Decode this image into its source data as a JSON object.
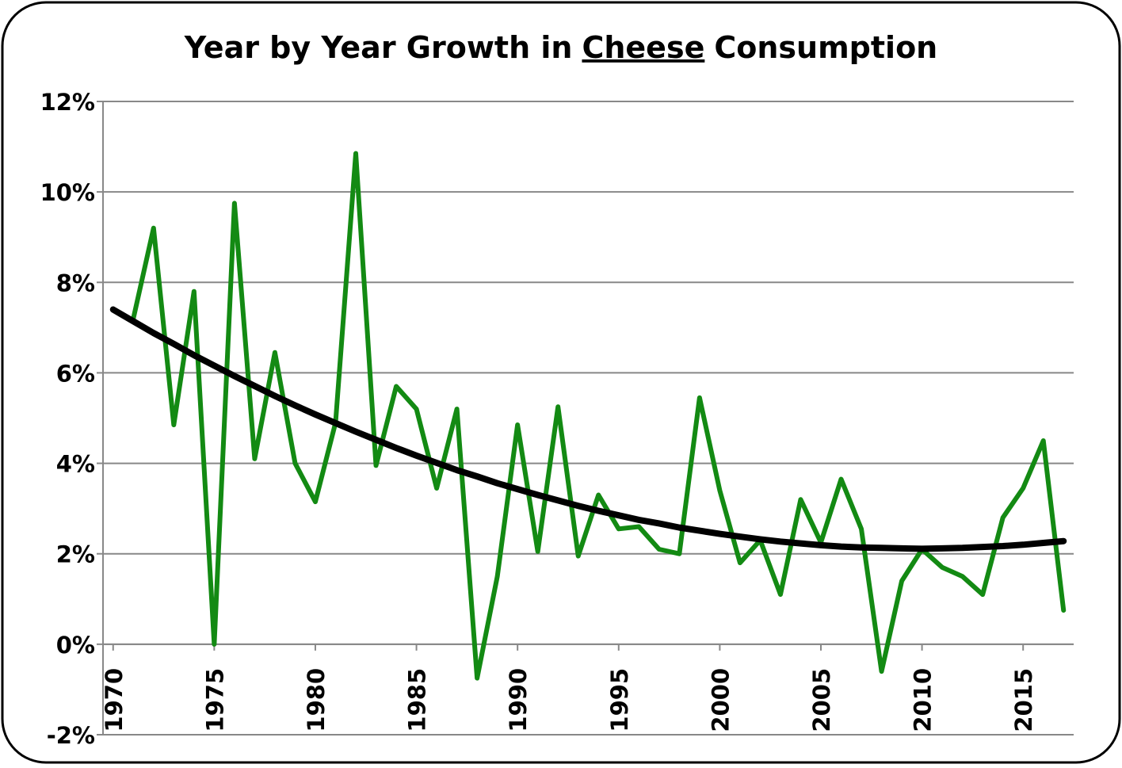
{
  "chart_data": {
    "type": "line",
    "title": [
      "Year by Year Growth in",
      "Cheese",
      "Consumption"
    ],
    "x": [
      1970,
      1971,
      1972,
      1973,
      1974,
      1975,
      1976,
      1977,
      1978,
      1979,
      1980,
      1981,
      1982,
      1983,
      1984,
      1985,
      1986,
      1987,
      1988,
      1989,
      1990,
      1991,
      1992,
      1993,
      1994,
      1995,
      1996,
      1997,
      1998,
      1999,
      2000,
      2001,
      2002,
      2003,
      2004,
      2005,
      2006,
      2007,
      2008,
      2009,
      2010,
      2011,
      2012,
      2013,
      2014,
      2015,
      2016,
      2017
    ],
    "xlim": [
      1969.5,
      2017.5
    ],
    "xticks": [
      1970,
      1975,
      1980,
      1985,
      1990,
      1995,
      2000,
      2005,
      2010,
      2015
    ],
    "ylim": [
      -2,
      12
    ],
    "yticks": [
      {
        "value": -2,
        "label": "-2%"
      },
      {
        "value": 0,
        "label": "0%"
      },
      {
        "value": 2,
        "label": "2%"
      },
      {
        "value": 4,
        "label": "4%"
      },
      {
        "value": 6,
        "label": "6%"
      },
      {
        "value": 8,
        "label": "8%"
      },
      {
        "value": 10,
        "label": "10%"
      },
      {
        "value": 12,
        "label": "12%"
      }
    ],
    "grid": true,
    "series": [
      {
        "color": "#138a13",
        "width": 6,
        "values": [
          null,
          7.2,
          9.2,
          4.85,
          7.8,
          0.0,
          9.75,
          4.1,
          6.45,
          4.0,
          3.15,
          4.9,
          10.85,
          3.95,
          5.7,
          5.2,
          3.45,
          5.2,
          -0.75,
          1.5,
          4.85,
          2.05,
          5.25,
          1.95,
          3.3,
          2.55,
          2.6,
          2.1,
          2.0,
          5.45,
          3.4,
          1.8,
          2.3,
          1.1,
          3.2,
          2.25,
          3.65,
          2.55,
          -0.6,
          1.4,
          2.1,
          1.7,
          1.5,
          1.1,
          2.8,
          3.45,
          4.5,
          0.75
        ]
      },
      {
        "color": "#000000",
        "width": 8,
        "values": [
          7.4,
          7.14,
          6.88,
          6.64,
          6.39,
          6.16,
          5.93,
          5.71,
          5.49,
          5.28,
          5.08,
          4.89,
          4.7,
          4.52,
          4.34,
          4.17,
          4.01,
          3.85,
          3.71,
          3.56,
          3.43,
          3.3,
          3.18,
          3.06,
          2.95,
          2.85,
          2.75,
          2.67,
          2.58,
          2.51,
          2.44,
          2.38,
          2.32,
          2.27,
          2.23,
          2.19,
          2.16,
          2.14,
          2.13,
          2.12,
          2.11,
          2.12,
          2.13,
          2.15,
          2.17,
          2.2,
          2.24,
          2.28
        ]
      }
    ]
  }
}
